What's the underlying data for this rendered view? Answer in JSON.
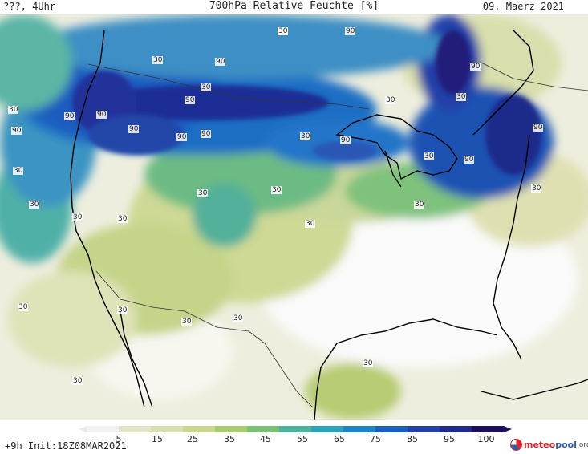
{
  "header": {
    "left": "???, 4Uhr",
    "title": "700hPa Relative Feuchte [%]",
    "date": "09. Maerz 2021"
  },
  "map": {
    "contour_labels": [
      {
        "text": "30"
      },
      {
        "text": "90"
      },
      {
        "text": "30"
      },
      {
        "text": "90"
      },
      {
        "text": "90"
      },
      {
        "text": "30"
      },
      {
        "text": "90"
      },
      {
        "text": "90"
      },
      {
        "text": "90"
      },
      {
        "text": "30"
      },
      {
        "text": "90"
      },
      {
        "text": "30"
      },
      {
        "text": "90"
      },
      {
        "text": "90"
      },
      {
        "text": "90"
      },
      {
        "text": "90"
      },
      {
        "text": "30"
      },
      {
        "text": "90"
      },
      {
        "text": "30"
      },
      {
        "text": "30"
      },
      {
        "text": "90"
      },
      {
        "text": "30"
      },
      {
        "text": "30"
      },
      {
        "text": "30"
      },
      {
        "text": "30"
      },
      {
        "text": "30"
      },
      {
        "text": "30"
      },
      {
        "text": "30"
      },
      {
        "text": "30"
      },
      {
        "text": "30"
      },
      {
        "text": "30"
      },
      {
        "text": "30"
      },
      {
        "text": "30"
      },
      {
        "text": "30"
      },
      {
        "text": "30"
      },
      {
        "text": "30"
      },
      {
        "text": "30"
      }
    ]
  },
  "colorbar": {
    "ticks": [
      "5",
      "15",
      "25",
      "35",
      "45",
      "55",
      "65",
      "75",
      "85",
      "95",
      "100"
    ],
    "colors": [
      "#f2f2f2",
      "#e3e3c6",
      "#d8ddb0",
      "#c8d68e",
      "#aacb6e",
      "#7cc077",
      "#4db49a",
      "#2aa3b9",
      "#1d83c8",
      "#1a5fc0",
      "#2240a8",
      "#1f2a8a",
      "#1b1060"
    ]
  },
  "footer": {
    "init": "+9h Init:18Z08MAR2021",
    "logo_meteo": "meteo",
    "logo_pool": "pool",
    "logo_tld": ".org"
  }
}
